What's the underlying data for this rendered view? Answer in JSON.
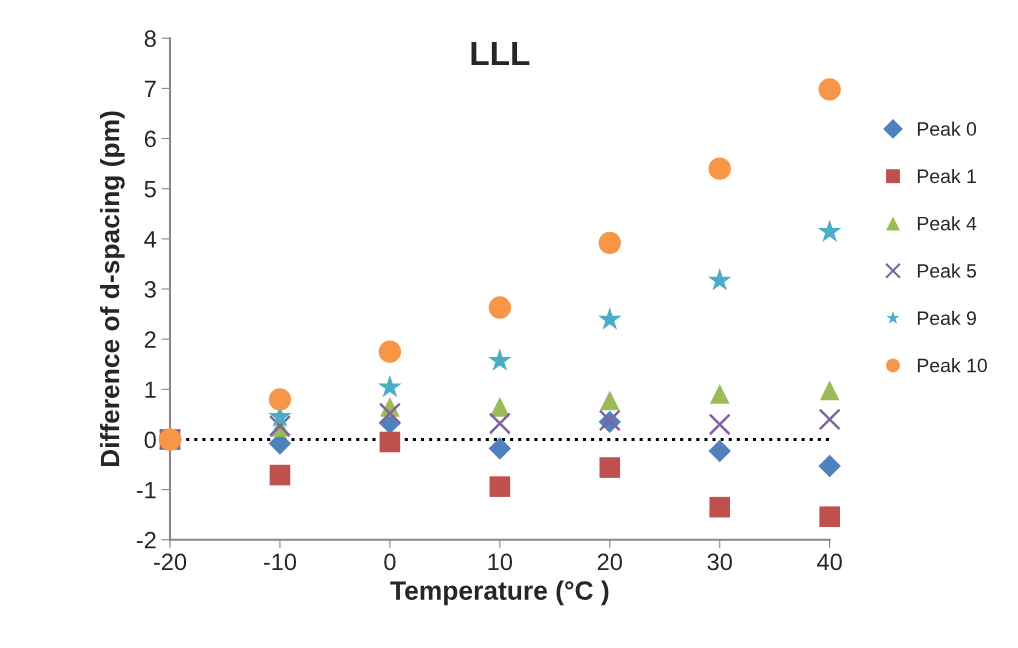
{
  "chart_data": {
    "type": "scatter",
    "title": "LLL",
    "xlabel": "Temperature (°C )",
    "ylabel": "Difference of d-spacing (pm)",
    "x": [
      -20,
      -10,
      0,
      10,
      20,
      30,
      40
    ],
    "series": [
      {
        "name": "Peak 0",
        "color": "#4f81bd",
        "marker": "diamond",
        "values": [
          null,
          -0.08,
          0.33,
          -0.18,
          0.35,
          -0.23,
          -0.53
        ]
      },
      {
        "name": "Peak 1",
        "color": "#c0504d",
        "marker": "square",
        "values": [
          0,
          -0.71,
          -0.05,
          -0.94,
          -0.56,
          -1.35,
          -1.54
        ]
      },
      {
        "name": "Peak 4",
        "color": "#9bbb59",
        "marker": "triangle",
        "values": [
          null,
          0.25,
          0.65,
          0.65,
          0.78,
          0.91,
          0.98
        ]
      },
      {
        "name": "Peak 5",
        "color": "#8064a2",
        "marker": "cross",
        "values": [
          0,
          0.27,
          0.52,
          0.32,
          0.38,
          0.3,
          0.4
        ]
      },
      {
        "name": "Peak 9",
        "color": "#4bacc6",
        "marker": "star",
        "values": [
          0,
          0.45,
          1.04,
          1.57,
          2.39,
          3.17,
          4.14
        ]
      },
      {
        "name": "Peak 10",
        "color": "#f79646",
        "marker": "circle",
        "values": [
          0,
          0.8,
          1.75,
          2.63,
          3.92,
          5.4,
          6.98
        ]
      }
    ],
    "xlim": [
      -20,
      40
    ],
    "xticks": [
      -20,
      -10,
      0,
      10,
      20,
      30,
      40
    ],
    "ylim": [
      -2,
      8
    ],
    "yticks": [
      -2,
      -1,
      0,
      1,
      2,
      3,
      4,
      5,
      6,
      7,
      8
    ],
    "ref_lines": [
      {
        "axis": "y",
        "value": 0,
        "color": "#000000",
        "line_style": "dotted"
      }
    ],
    "grid": false,
    "legend": "right"
  }
}
